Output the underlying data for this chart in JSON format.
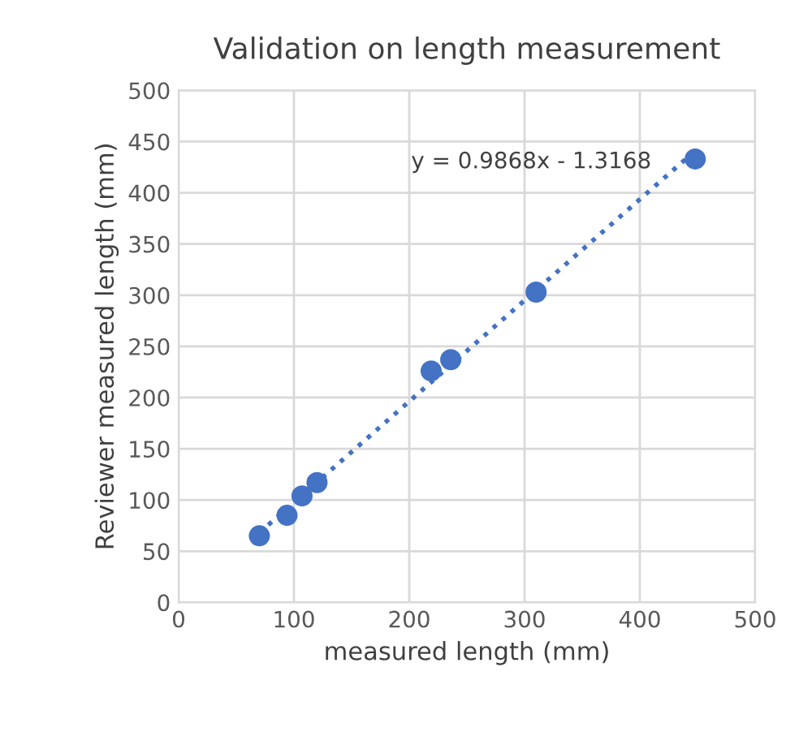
{
  "chart_data": {
    "type": "scatter",
    "title": "Validation on length measurement",
    "xlabel": "measured length (mm)",
    "ylabel": "Reviewer measured length (mm)",
    "series": [
      {
        "color": "#4472c4",
        "x": [
          70,
          94,
          107,
          120,
          219,
          236,
          310,
          448
        ],
        "values": [
          65,
          85,
          104,
          117,
          226,
          237,
          303,
          433
        ],
        "marker": "circle"
      },
      {
        "type": "line",
        "color": "#4472c4",
        "x": [
          70,
          448
        ],
        "values": [
          68,
          441
        ],
        "line_style": "dotted",
        "marker": "none"
      }
    ],
    "annotations": [
      "y = 0.9868x - 1.3168"
    ],
    "xlim": [
      0,
      500
    ],
    "ylim": [
      0,
      500
    ],
    "xticks": [
      0,
      100,
      200,
      300,
      400,
      500
    ],
    "yticks": [
      0,
      50,
      100,
      150,
      200,
      250,
      300,
      350,
      400,
      450,
      500
    ],
    "grid": true,
    "legend": false
  }
}
